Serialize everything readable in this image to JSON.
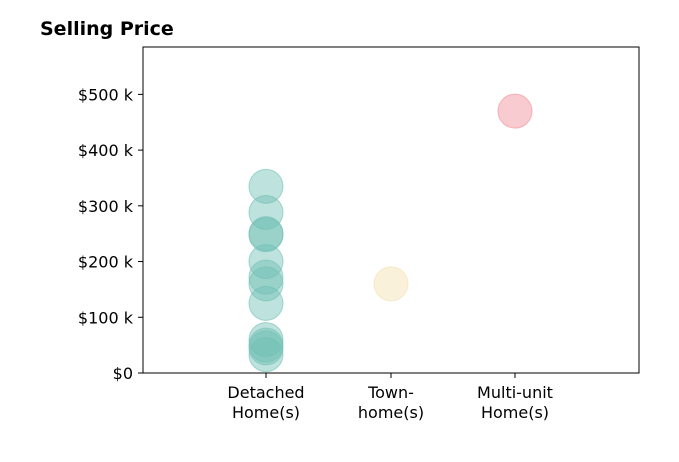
{
  "chart_data": {
    "type": "scatter",
    "title": "Selling Price",
    "xlabel": "",
    "ylabel": "",
    "categories": [
      [
        "Detached",
        "Home(s)"
      ],
      [
        "Town-",
        "home(s)"
      ],
      [
        "Multi-unit",
        "Home(s)"
      ]
    ],
    "ylim": [
      0,
      585000
    ],
    "yticks": [
      0,
      100000,
      200000,
      300000,
      400000,
      500000
    ],
    "ytick_labels": [
      "$0",
      "$100 k",
      "$200 k",
      "$300 k",
      "$400 k",
      "$500 k"
    ],
    "grid": false,
    "series": [
      {
        "category": "Detached Home(s)",
        "color": "#6fbfb4",
        "values": [
          335000,
          288000,
          250000,
          248000,
          200000,
          172000,
          160000,
          125000,
          60000,
          50000,
          45000,
          33000
        ]
      },
      {
        "category": "Town-home(s)",
        "color": "#f3dfae",
        "values": [
          160000
        ]
      },
      {
        "category": "Multi-unit Home(s)",
        "color": "#f08c96",
        "values": [
          470000
        ]
      }
    ]
  }
}
